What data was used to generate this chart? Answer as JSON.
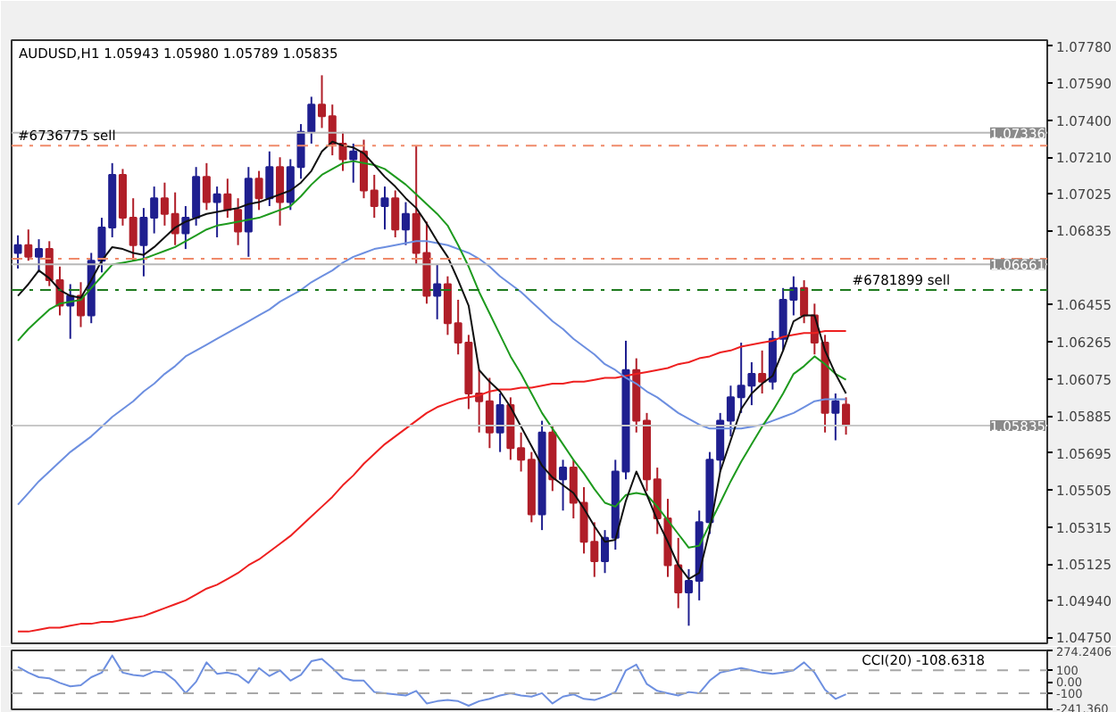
{
  "chart_data": [
    {
      "type": "candlestick",
      "title": "AUDUSD,H1  1.05943 1.05980 1.05789 1.05835",
      "tick_labels": "y",
      "categories": [
        null,
        null,
        null,
        null,
        null,
        null,
        null,
        null,
        null,
        null,
        null,
        null,
        null,
        null,
        null,
        null,
        null,
        null,
        null,
        null,
        null,
        null,
        null,
        null,
        null,
        null,
        null,
        null,
        null,
        null,
        null,
        null,
        null,
        null,
        null,
        null,
        null,
        null,
        null,
        null,
        null,
        null,
        null,
        null,
        null,
        null,
        null,
        null,
        null,
        null,
        null,
        null,
        null,
        null,
        null,
        null,
        null,
        null,
        null,
        null,
        null,
        null,
        null,
        null,
        null,
        null,
        null,
        null,
        null,
        null,
        null,
        null,
        null,
        null,
        null,
        null,
        null,
        null,
        null,
        null
      ],
      "ohlc": [
        [
          1.0672,
          1.0681,
          1.0664,
          1.0676
        ],
        [
          1.0676,
          1.0684,
          1.0668,
          1.067
        ],
        [
          1.067,
          1.0679,
          1.0662,
          1.0674
        ],
        [
          1.0674,
          1.0678,
          1.0655,
          1.0658
        ],
        [
          1.0658,
          1.0665,
          1.064,
          1.0645
        ],
        [
          1.0645,
          1.0656,
          1.0628,
          1.065
        ],
        [
          1.065,
          1.0657,
          1.0634,
          1.064
        ],
        [
          1.064,
          1.0672,
          1.0636,
          1.0668
        ],
        [
          1.0668,
          1.069,
          1.0662,
          1.0685
        ],
        [
          1.0685,
          1.0718,
          1.068,
          1.0712
        ],
        [
          1.0712,
          1.0715,
          1.0686,
          1.069
        ],
        [
          1.069,
          1.07,
          1.0668,
          1.0676
        ],
        [
          1.0676,
          1.0695,
          1.066,
          1.069
        ],
        [
          1.069,
          1.0706,
          1.0682,
          1.07
        ],
        [
          1.07,
          1.0708,
          1.0686,
          1.0692
        ],
        [
          1.0692,
          1.0703,
          1.0676,
          1.0682
        ],
        [
          1.0682,
          1.0696,
          1.0674,
          1.069
        ],
        [
          1.069,
          1.0716,
          1.0686,
          1.0711
        ],
        [
          1.0711,
          1.0718,
          1.0694,
          1.0698
        ],
        [
          1.0698,
          1.0706,
          1.068,
          1.0702
        ],
        [
          1.0702,
          1.071,
          1.069,
          1.0694
        ],
        [
          1.0694,
          1.07,
          1.0676,
          1.0683
        ],
        [
          1.0683,
          1.0716,
          1.067,
          1.071
        ],
        [
          1.071,
          1.0714,
          1.0694,
          1.07
        ],
        [
          1.07,
          1.0724,
          1.0696,
          1.0716
        ],
        [
          1.0716,
          1.0721,
          1.0686,
          1.0698
        ],
        [
          1.0698,
          1.072,
          1.0694,
          1.0716
        ],
        [
          1.0716,
          1.0738,
          1.071,
          1.0734
        ],
        [
          1.0734,
          1.0752,
          1.0728,
          1.0748
        ],
        [
          1.0748,
          1.0763,
          1.0736,
          1.0742
        ],
        [
          1.0742,
          1.0748,
          1.0722,
          1.0728
        ],
        [
          1.0728,
          1.0734,
          1.0714,
          1.072
        ],
        [
          1.072,
          1.0728,
          1.0708,
          1.0724
        ],
        [
          1.0724,
          1.073,
          1.07,
          1.0704
        ],
        [
          1.0704,
          1.0712,
          1.069,
          1.0696
        ],
        [
          1.0696,
          1.0706,
          1.0684,
          1.07
        ],
        [
          1.07,
          1.0704,
          1.068,
          1.0684
        ],
        [
          1.0684,
          1.0698,
          1.0676,
          1.0692
        ],
        [
          1.0692,
          1.0727,
          1.0666,
          1.0672
        ],
        [
          1.0672,
          1.0688,
          1.0646,
          1.065
        ],
        [
          1.065,
          1.0666,
          1.0638,
          1.0656
        ],
        [
          1.0656,
          1.066,
          1.063,
          1.0636
        ],
        [
          1.0636,
          1.0648,
          1.062,
          1.0626
        ],
        [
          1.0626,
          1.063,
          1.0592,
          1.06
        ],
        [
          1.06,
          1.0612,
          1.058,
          1.0596
        ],
        [
          1.0596,
          1.0608,
          1.0572,
          1.058
        ],
        [
          1.058,
          1.06,
          1.057,
          1.0594
        ],
        [
          1.0594,
          1.0598,
          1.0566,
          1.0572
        ],
        [
          1.0572,
          1.058,
          1.056,
          1.0566
        ],
        [
          1.0566,
          1.057,
          1.0534,
          1.0538
        ],
        [
          1.0538,
          1.0586,
          1.053,
          1.058
        ],
        [
          1.058,
          1.0584,
          1.055,
          1.0556
        ],
        [
          1.0556,
          1.0566,
          1.054,
          1.0562
        ],
        [
          1.0562,
          1.0566,
          1.0536,
          1.0544
        ],
        [
          1.0544,
          1.0552,
          1.0518,
          1.0524
        ],
        [
          1.0524,
          1.0534,
          1.0506,
          1.0514
        ],
        [
          1.0514,
          1.053,
          1.0508,
          1.0526
        ],
        [
          1.0526,
          1.0566,
          1.052,
          1.056
        ],
        [
          1.056,
          1.0627,
          1.0556,
          1.0612
        ],
        [
          1.0612,
          1.0618,
          1.058,
          1.0586
        ],
        [
          1.0586,
          1.059,
          1.055,
          1.0556
        ],
        [
          1.0556,
          1.0562,
          1.0528,
          1.0536
        ],
        [
          1.0536,
          1.0546,
          1.0506,
          1.0512
        ],
        [
          1.0512,
          1.0526,
          1.049,
          1.0498
        ],
        [
          1.0498,
          1.051,
          1.0481,
          1.0504
        ],
        [
          1.0504,
          1.054,
          1.0494,
          1.0534
        ],
        [
          1.0534,
          1.057,
          1.0528,
          1.0566
        ],
        [
          1.0566,
          1.059,
          1.056,
          1.0586
        ],
        [
          1.0586,
          1.0604,
          1.0578,
          1.0598
        ],
        [
          1.0598,
          1.0626,
          1.059,
          1.0604
        ],
        [
          1.0604,
          1.0616,
          1.0594,
          1.061
        ],
        [
          1.061,
          1.0622,
          1.06,
          1.0606
        ],
        [
          1.0606,
          1.0632,
          1.0602,
          1.0628
        ],
        [
          1.0628,
          1.0654,
          1.0622,
          1.0648
        ],
        [
          1.0648,
          1.066,
          1.064,
          1.0654
        ],
        [
          1.0654,
          1.0658,
          1.0636,
          1.064
        ],
        [
          1.064,
          1.0646,
          1.062,
          1.0626
        ],
        [
          1.0626,
          1.063,
          1.058,
          1.059
        ],
        [
          1.059,
          1.06,
          1.0576,
          1.0596
        ],
        [
          1.05943,
          1.0598,
          1.05789,
          1.05835
        ]
      ],
      "colors": [
        "#1f1f8f",
        "#b01e28",
        "#1f1f8f",
        "#b01e28",
        "#b01e28",
        "#1f1f8f",
        "#b01e28",
        "#1f1f8f",
        "#1f1f8f",
        "#1f1f8f",
        "#b01e28",
        "#b01e28",
        "#1f1f8f",
        "#1f1f8f",
        "#b01e28",
        "#b01e28",
        "#1f1f8f",
        "#1f1f8f",
        "#b01e28",
        "#1f1f8f",
        "#b01e28",
        "#b01e28",
        "#1f1f8f",
        "#b01e28",
        "#1f1f8f",
        "#b01e28",
        "#1f1f8f",
        "#1f1f8f",
        "#1f1f8f",
        "#b01e28",
        "#b01e28",
        "#b01e28",
        "#1f1f8f",
        "#b01e28",
        "#b01e28",
        "#1f1f8f",
        "#b01e28",
        "#1f1f8f",
        "#b01e28",
        "#b01e28",
        "#1f1f8f",
        "#b01e28",
        "#b01e28",
        "#b01e28",
        "#b01e28",
        "#b01e28",
        "#1f1f8f",
        "#b01e28",
        "#b01e28",
        "#b01e28",
        "#1f1f8f",
        "#b01e28",
        "#1f1f8f",
        "#b01e28",
        "#b01e28",
        "#b01e28",
        "#1f1f8f",
        "#1f1f8f",
        "#1f1f8f",
        "#b01e28",
        "#b01e28",
        "#b01e28",
        "#b01e28",
        "#b01e28",
        "#1f1f8f",
        "#1f1f8f",
        "#1f1f8f",
        "#1f1f8f",
        "#1f1f8f",
        "#1f1f8f",
        "#1f1f8f",
        "#b01e28",
        "#1f1f8f",
        "#1f1f8f",
        "#1f1f8f",
        "#b01e28",
        "#b01e28",
        "#b01e28",
        "#1f1f8f",
        "#b01e28"
      ],
      "series": [
        {
          "type": "line",
          "color": "#ee2020",
          "values": [
            1.0478,
            1.0478,
            1.0479,
            1.048,
            1.048,
            1.0481,
            1.0482,
            1.0482,
            1.0483,
            1.0483,
            1.0484,
            1.0485,
            1.0486,
            1.0488,
            1.049,
            1.0492,
            1.0494,
            1.0497,
            1.05,
            1.0502,
            1.0505,
            1.0508,
            1.0512,
            1.0515,
            1.0519,
            1.0523,
            1.0527,
            1.0532,
            1.0537,
            1.0542,
            1.0547,
            1.0553,
            1.0558,
            1.0564,
            1.0569,
            1.0574,
            1.0578,
            1.0582,
            1.0586,
            1.059,
            1.0593,
            1.0595,
            1.0597,
            1.0598,
            1.0599,
            1.0601,
            1.0602,
            1.0602,
            1.0603,
            1.0603,
            1.0604,
            1.0605,
            1.0605,
            1.0606,
            1.0606,
            1.0607,
            1.0608,
            1.0608,
            1.0609,
            1.061,
            1.0611,
            1.0612,
            1.0613,
            1.0615,
            1.0616,
            1.0618,
            1.0619,
            1.0621,
            1.0622,
            1.0624,
            1.0625,
            1.0626,
            1.0627,
            1.0629,
            1.063,
            1.0631,
            1.0631,
            1.0632,
            1.0632,
            1.0632
          ]
        },
        {
          "type": "line",
          "color": "#6d8fe0",
          "values": [
            1.0543,
            1.0549,
            1.0555,
            1.056,
            1.0565,
            1.057,
            1.0574,
            1.0578,
            1.0583,
            1.0588,
            1.0592,
            1.0596,
            1.0601,
            1.0605,
            1.061,
            1.0614,
            1.0619,
            1.0622,
            1.0625,
            1.0628,
            1.0631,
            1.0634,
            1.0637,
            1.064,
            1.0643,
            1.0647,
            1.065,
            1.0653,
            1.0657,
            1.066,
            1.0663,
            1.0667,
            1.067,
            1.0672,
            1.0674,
            1.0675,
            1.0676,
            1.0677,
            1.0678,
            1.0678,
            1.0677,
            1.0676,
            1.0674,
            1.0672,
            1.0669,
            1.0665,
            1.066,
            1.0656,
            1.0652,
            1.0647,
            1.0642,
            1.0637,
            1.0633,
            1.0628,
            1.0624,
            1.062,
            1.0615,
            1.0612,
            1.0608,
            1.0605,
            1.0601,
            1.0598,
            1.0594,
            1.059,
            1.0587,
            1.0584,
            1.0582,
            1.0582,
            1.0582,
            1.0582,
            1.0583,
            1.0584,
            1.0586,
            1.0588,
            1.059,
            1.0593,
            1.0596,
            1.0597,
            1.0597,
            1.0597
          ]
        },
        {
          "type": "line",
          "color": "#1e9a1e",
          "values": [
            1.0627,
            1.0633,
            1.0638,
            1.0643,
            1.0646,
            1.0647,
            1.0648,
            1.0654,
            1.066,
            1.0666,
            1.0667,
            1.0668,
            1.0669,
            1.0671,
            1.0673,
            1.0675,
            1.0678,
            1.0681,
            1.0684,
            1.0686,
            1.0687,
            1.0688,
            1.0689,
            1.069,
            1.0692,
            1.0694,
            1.0696,
            1.0701,
            1.0707,
            1.0712,
            1.0715,
            1.0718,
            1.0719,
            1.0718,
            1.0717,
            1.0715,
            1.0711,
            1.0707,
            1.0702,
            1.0697,
            1.0692,
            1.0686,
            1.0676,
            1.0665,
            1.0652,
            1.0641,
            1.063,
            1.0619,
            1.061,
            1.06,
            1.059,
            1.0582,
            1.0574,
            1.0566,
            1.0559,
            1.0551,
            1.0544,
            1.0542,
            1.0548,
            1.0549,
            1.0548,
            1.0542,
            1.0535,
            1.0528,
            1.0521,
            1.0522,
            1.0533,
            1.0544,
            1.0555,
            1.0565,
            1.0574,
            1.0583,
            1.0591,
            1.06,
            1.061,
            1.0614,
            1.0619,
            1.0615,
            1.061,
            1.0607
          ]
        },
        {
          "type": "line",
          "color": "#111111",
          "values": [
            1.065,
            1.0656,
            1.0663,
            1.0659,
            1.0653,
            1.065,
            1.0649,
            1.0658,
            1.0668,
            1.0675,
            1.0674,
            1.0672,
            1.0671,
            1.0675,
            1.068,
            1.0685,
            1.0688,
            1.069,
            1.0692,
            1.0693,
            1.0694,
            1.0695,
            1.0697,
            1.0698,
            1.07,
            1.0702,
            1.0704,
            1.0708,
            1.0714,
            1.0724,
            1.0729,
            1.0727,
            1.0726,
            1.0723,
            1.0717,
            1.0711,
            1.0706,
            1.07,
            1.0695,
            1.0687,
            1.0678,
            1.067,
            1.0658,
            1.0645,
            1.0612,
            1.0606,
            1.0601,
            1.0593,
            1.0583,
            1.0573,
            1.0563,
            1.0557,
            1.0553,
            1.0549,
            1.0541,
            1.0532,
            1.0524,
            1.0525,
            1.0545,
            1.056,
            1.0548,
            1.0535,
            1.0524,
            1.0512,
            1.0505,
            1.0508,
            1.053,
            1.056,
            1.0576,
            1.0592,
            1.06,
            1.0605,
            1.0609,
            1.0622,
            1.0637,
            1.064,
            1.064,
            1.0622,
            1.061,
            1.06
          ]
        }
      ],
      "ref_lines": [
        {
          "axis": "y",
          "value": 1.07336,
          "label": "1.07336",
          "color": "#b8b8b8",
          "line_style": "solid"
        },
        {
          "axis": "y",
          "value": 1.0727,
          "label": "#6736775 sell",
          "color": "#f08a6a",
          "line_style": "dashdot"
        },
        {
          "axis": "y",
          "value": 1.0669,
          "color": "#f08a6a",
          "line_style": "dashdot"
        },
        {
          "axis": "y",
          "value": 1.06661,
          "label": "1.06661",
          "color": "#b8b8b8",
          "line_style": "solid"
        },
        {
          "axis": "y",
          "value": 1.0653,
          "label": "#6781899 sell",
          "color": "#1e7a1e",
          "line_style": "dashdot"
        },
        {
          "axis": "y",
          "value": 1.05835,
          "label": "1.05835",
          "color": "#c8c8c8",
          "line_style": "solid"
        }
      ],
      "ylim": [
        1.0472,
        1.0781
      ],
      "yticks": [
        {
          "value": 1.0778,
          "label": "1.07780"
        },
        {
          "value": 1.0759,
          "label": "1.07590"
        },
        {
          "value": 1.074,
          "label": "1.07400"
        },
        {
          "value": 1.0721,
          "label": "1.07210"
        },
        {
          "value": 1.07025,
          "label": "1.07025"
        },
        {
          "value": 1.06835,
          "label": "1.06835"
        },
        {
          "value": 1.06455,
          "label": "1.06455"
        },
        {
          "value": 1.06265,
          "label": "1.06265"
        },
        {
          "value": 1.06075,
          "label": "1.06075"
        },
        {
          "value": 1.05885,
          "label": "1.05885"
        },
        {
          "value": 1.05695,
          "label": "1.05695"
        },
        {
          "value": 1.05505,
          "label": "1.05505"
        },
        {
          "value": 1.05315,
          "label": "1.05315"
        },
        {
          "value": 1.05125,
          "label": "1.05125"
        },
        {
          "value": 1.0494,
          "label": "1.04940"
        },
        {
          "value": 1.0475,
          "label": "1.04750"
        }
      ]
    },
    {
      "type": "line",
      "title": "CCI(20) -108.6318",
      "tick_labels": "y",
      "categories": [
        null,
        null,
        null,
        null,
        null,
        null,
        null,
        null,
        null,
        null,
        null,
        null,
        null,
        null,
        null,
        null,
        null,
        null,
        null,
        null,
        null,
        null,
        null,
        null,
        null,
        null,
        null,
        null,
        null,
        null,
        null,
        null,
        null,
        null,
        null,
        null,
        null,
        null,
        null,
        null,
        null,
        null,
        null,
        null,
        null,
        null,
        null,
        null,
        null,
        null,
        null,
        null,
        null,
        null,
        null,
        null,
        null,
        null,
        null,
        null,
        null,
        null,
        null,
        null,
        null,
        null,
        null,
        null,
        null,
        null,
        null,
        null,
        null,
        null,
        null,
        null,
        null,
        null,
        null,
        null
      ],
      "series": [
        {
          "color": "#6d8fe0",
          "values": [
            130,
            80,
            40,
            30,
            -10,
            -40,
            -30,
            40,
            80,
            230,
            80,
            60,
            50,
            90,
            80,
            10,
            -100,
            0,
            170,
            70,
            80,
            60,
            -10,
            120,
            50,
            100,
            10,
            60,
            180,
            200,
            120,
            30,
            10,
            10,
            -90,
            -100,
            -110,
            -120,
            -80,
            -190,
            -170,
            -160,
            -170,
            -210,
            -170,
            -150,
            -120,
            -100,
            -120,
            -130,
            -100,
            -190,
            -130,
            -110,
            -150,
            -160,
            -130,
            -90,
            100,
            150,
            -20,
            -80,
            -100,
            -120,
            -90,
            -100,
            10,
            80,
            100,
            120,
            100,
            80,
            70,
            80,
            100,
            170,
            80,
            -70,
            -150,
            -110
          ]
        }
      ],
      "ref_lines": [
        {
          "axis": "y",
          "value": 100,
          "color": "#a8a8a8",
          "line_style": "dashed"
        },
        {
          "axis": "y",
          "value": -100,
          "color": "#a8a8a8",
          "line_style": "dashed"
        }
      ],
      "ylim": [
        -241.36,
        274.2406
      ],
      "yticks": [
        {
          "value": 274.2406,
          "label": "274.2406"
        },
        {
          "value": 100,
          "label": "100"
        },
        {
          "value": 0,
          "label": "0.00"
        },
        {
          "value": -100,
          "label": "-100"
        },
        {
          "value": -241.36,
          "label": "-241.360"
        }
      ]
    }
  ]
}
